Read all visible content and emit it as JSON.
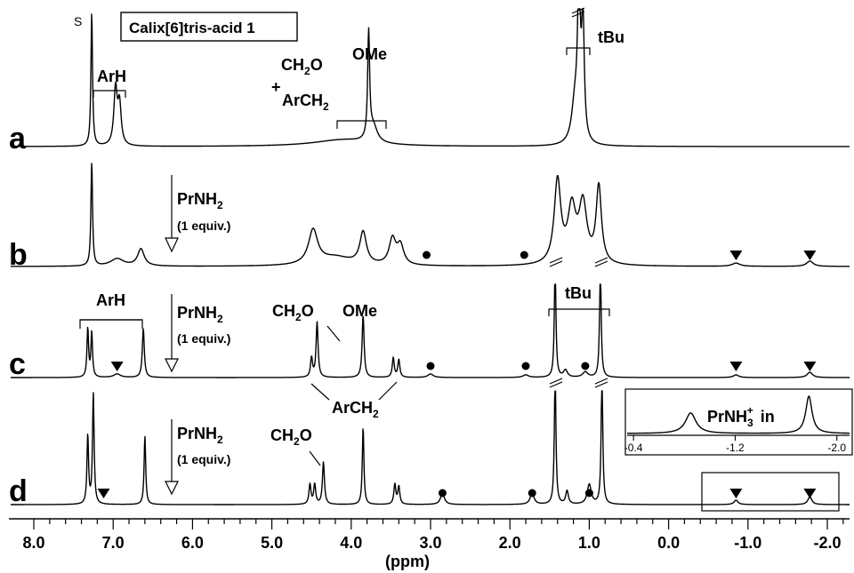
{
  "chart_data": {
    "type": "line",
    "title": "",
    "xlabel": "(ppm)",
    "ylabel": "",
    "xlim": [
      8.4,
      -2.2
    ],
    "x_reversed": true,
    "x_ticks": [
      "8.0",
      "7.0",
      "6.0",
      "5.0",
      "4.0",
      "3.0",
      "2.0",
      "1.0",
      "0.0",
      "-1.0",
      "-2.0"
    ],
    "grid": false,
    "legend": "none",
    "compound_label": "Calix[6]tris-acid 1",
    "solvent_label": "S",
    "additions": [
      {
        "reagent": "PrNH",
        "subscript": "2",
        "amount": "(1 equiv.)",
        "between": [
          "a",
          "b"
        ]
      },
      {
        "reagent": "PrNH",
        "subscript": "2",
        "amount": "(1 equiv.)",
        "between": [
          "b",
          "c"
        ]
      },
      {
        "reagent": "PrNH",
        "subscript": "2",
        "amount": "(1 equiv.)",
        "between": [
          "c",
          "d"
        ]
      }
    ],
    "assignments": {
      "arh": "ArH",
      "ch2o_pre": "CH",
      "ch2o_sub": "2",
      "ch2o_post": "O",
      "plus": "+",
      "arch2": "ArCH",
      "arch2_sub": "2",
      "ome": "OMe",
      "tbu": "tBu"
    },
    "markers": {
      "circle": "free amine PrNH2 signals",
      "triangle": "complexed PrNH3+ signals"
    },
    "series": [
      {
        "name": "a",
        "peaks": [
          {
            "ppm": 7.27,
            "h": 1.0,
            "w": 0.012
          },
          {
            "ppm": 6.97,
            "h": 0.42,
            "w": 0.025
          },
          {
            "ppm": 6.92,
            "h": 0.3,
            "w": 0.025
          },
          {
            "ppm": 3.78,
            "h": 0.8,
            "w": 0.015
          },
          {
            "ppm": 3.72,
            "h": 0.12,
            "w": 0.06
          },
          {
            "ppm": 4.1,
            "h": 0.05,
            "w": 0.45
          },
          {
            "ppm": 1.13,
            "h": 1.15,
            "w": 0.02
          },
          {
            "ppm": 1.08,
            "h": 0.9,
            "w": 0.02
          },
          {
            "ppm": 1.18,
            "h": 0.3,
            "w": 0.05
          }
        ]
      },
      {
        "name": "b",
        "peaks": [
          {
            "ppm": 7.27,
            "h": 0.98,
            "w": 0.012
          },
          {
            "ppm": 6.95,
            "h": 0.07,
            "w": 0.1
          },
          {
            "ppm": 6.65,
            "h": 0.16,
            "w": 0.05
          },
          {
            "ppm": 4.48,
            "h": 0.32,
            "w": 0.07
          },
          {
            "ppm": 4.2,
            "h": 0.08,
            "w": 0.25
          },
          {
            "ppm": 3.85,
            "h": 0.3,
            "w": 0.05
          },
          {
            "ppm": 3.48,
            "h": 0.24,
            "w": 0.05
          },
          {
            "ppm": 3.38,
            "h": 0.18,
            "w": 0.05
          },
          {
            "ppm": 1.4,
            "h": 0.78,
            "w": 0.05
          },
          {
            "ppm": 1.22,
            "h": 0.5,
            "w": 0.06
          },
          {
            "ppm": 1.08,
            "h": 0.55,
            "w": 0.06
          },
          {
            "ppm": 0.88,
            "h": 0.72,
            "w": 0.04
          },
          {
            "ppm": -0.85,
            "h": 0.03,
            "w": 0.06
          },
          {
            "ppm": -1.78,
            "h": 0.05,
            "w": 0.05
          }
        ]
      },
      {
        "name": "c",
        "peaks": [
          {
            "ppm": 7.32,
            "h": 0.55,
            "w": 0.012
          },
          {
            "ppm": 7.27,
            "h": 0.5,
            "w": 0.012
          },
          {
            "ppm": 6.95,
            "h": 0.04,
            "w": 0.05
          },
          {
            "ppm": 6.62,
            "h": 0.55,
            "w": 0.015
          },
          {
            "ppm": 4.5,
            "h": 0.22,
            "w": 0.015
          },
          {
            "ppm": 4.43,
            "h": 0.62,
            "w": 0.015
          },
          {
            "ppm": 3.85,
            "h": 0.7,
            "w": 0.015
          },
          {
            "ppm": 3.47,
            "h": 0.22,
            "w": 0.015
          },
          {
            "ppm": 3.4,
            "h": 0.2,
            "w": 0.015
          },
          {
            "ppm": 3.0,
            "h": 0.04,
            "w": 0.04
          },
          {
            "ppm": 1.8,
            "h": 0.03,
            "w": 0.04
          },
          {
            "ppm": 1.43,
            "h": 1.3,
            "w": 0.012
          },
          {
            "ppm": 1.3,
            "h": 0.08,
            "w": 0.03
          },
          {
            "ppm": 1.05,
            "h": 0.06,
            "w": 0.04
          },
          {
            "ppm": 0.86,
            "h": 1.3,
            "w": 0.012
          },
          {
            "ppm": -0.85,
            "h": 0.03,
            "w": 0.04
          },
          {
            "ppm": -1.78,
            "h": 0.06,
            "w": 0.04
          }
        ]
      },
      {
        "name": "d",
        "peaks": [
          {
            "ppm": 7.32,
            "h": 0.62,
            "w": 0.012
          },
          {
            "ppm": 7.25,
            "h": 1.0,
            "w": 0.012
          },
          {
            "ppm": 6.6,
            "h": 0.62,
            "w": 0.012
          },
          {
            "ppm": 4.52,
            "h": 0.18,
            "w": 0.015
          },
          {
            "ppm": 4.46,
            "h": 0.18,
            "w": 0.015
          },
          {
            "ppm": 4.35,
            "h": 0.38,
            "w": 0.015
          },
          {
            "ppm": 3.85,
            "h": 0.7,
            "w": 0.012
          },
          {
            "ppm": 3.45,
            "h": 0.18,
            "w": 0.015
          },
          {
            "ppm": 3.4,
            "h": 0.16,
            "w": 0.015
          },
          {
            "ppm": 2.85,
            "h": 0.1,
            "w": 0.03
          },
          {
            "ppm": 1.72,
            "h": 0.1,
            "w": 0.03
          },
          {
            "ppm": 1.43,
            "h": 1.2,
            "w": 0.012
          },
          {
            "ppm": 1.28,
            "h": 0.12,
            "w": 0.02
          },
          {
            "ppm": 1.0,
            "h": 0.18,
            "w": 0.03
          },
          {
            "ppm": 0.84,
            "h": 1.2,
            "w": 0.012
          },
          {
            "ppm": -0.85,
            "h": 0.04,
            "w": 0.03
          },
          {
            "ppm": -1.78,
            "h": 0.07,
            "w": 0.03
          }
        ]
      }
    ],
    "free_amine_ppm": {
      "b": [
        3.05,
        1.82
      ],
      "c": [
        3.0,
        1.8,
        1.05
      ],
      "d": [
        2.85,
        1.72,
        1.0
      ]
    },
    "complex_ppm": {
      "b": [
        -0.85,
        -1.78
      ],
      "c": [
        6.95,
        -0.85,
        -1.78
      ],
      "d": [
        7.12,
        -0.85,
        -1.78
      ]
    },
    "inset": {
      "label": "PrNH",
      "label_sub": "3",
      "label_sup": "+",
      "label_suffix": "in",
      "ticks": [
        "-0.4",
        "-1.2",
        "-2.0"
      ],
      "xlim": [
        -0.35,
        -2.1
      ],
      "peaks": [
        {
          "ppm": -0.85,
          "h": 0.55,
          "w": 0.05
        },
        {
          "ppm": -1.78,
          "h": 1.0,
          "w": 0.03
        }
      ]
    }
  }
}
